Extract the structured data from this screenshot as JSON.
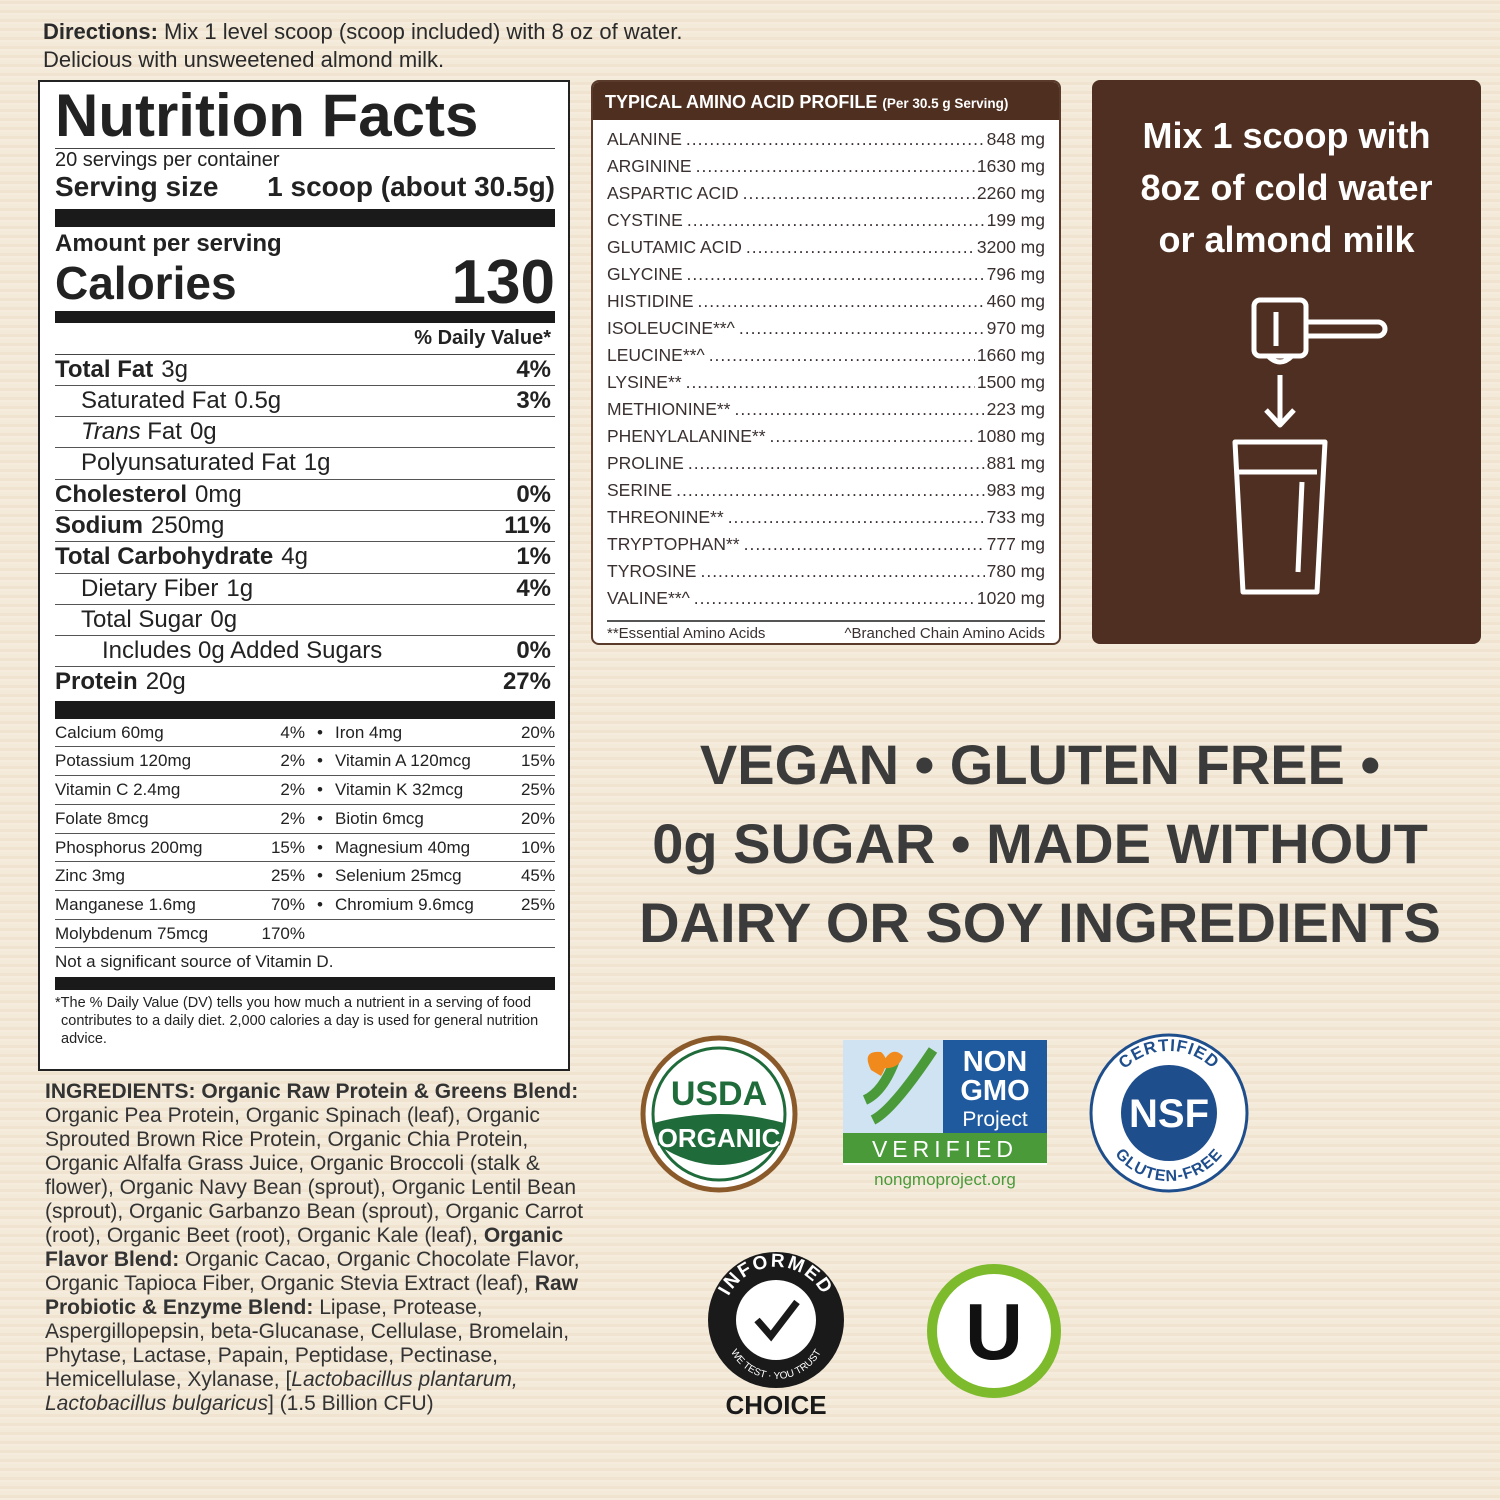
{
  "directions": {
    "label": "Directions:",
    "line1": " Mix 1 level scoop (scoop included) with 8 oz of water.",
    "line2": "Delicious with unsweetened almond milk."
  },
  "nutrition": {
    "title": "Nutrition Facts",
    "servings": "20 servings per container",
    "serving_size_label": "Serving size",
    "serving_size_value": "1 scoop (about 30.5g)",
    "amount_per_serving": "Amount per serving",
    "calories_label": "Calories",
    "calories_value": "130",
    "dv_header": "% Daily Value*",
    "rows": [
      {
        "label": "Total Fat",
        "amount": "3g",
        "dv": "4%",
        "bold": true,
        "indent": 0
      },
      {
        "label": "Saturated Fat",
        "amount": "0.5g",
        "dv": "3%",
        "bold": false,
        "indent": 1
      },
      {
        "italic_prefix": "Trans",
        "label": "Fat",
        "amount": "0g",
        "dv": "",
        "bold": false,
        "indent": 1
      },
      {
        "label": "Polyunsaturated Fat",
        "amount": "1g",
        "dv": "",
        "bold": false,
        "indent": 1
      },
      {
        "label": "Cholesterol",
        "amount": "0mg",
        "dv": "0%",
        "bold": true,
        "indent": 0
      },
      {
        "label": "Sodium",
        "amount": "250mg",
        "dv": "11%",
        "bold": true,
        "indent": 0
      },
      {
        "label": "Total Carbohydrate",
        "amount": "4g",
        "dv": "1%",
        "bold": true,
        "indent": 0
      },
      {
        "label": "Dietary Fiber",
        "amount": "1g",
        "dv": "4%",
        "bold": false,
        "indent": 1
      },
      {
        "label": "Total Sugar",
        "amount": "0g",
        "dv": "",
        "bold": false,
        "indent": 1
      },
      {
        "label": "Includes 0g Added Sugars",
        "amount": "",
        "dv": "0%",
        "bold": false,
        "indent": 2
      },
      {
        "label": "Protein",
        "amount": "20g",
        "dv": "27%",
        "bold": true,
        "indent": 0
      }
    ],
    "micronutrients": [
      {
        "left": "Calcium 60mg",
        "left_dv": "4%",
        "right": "Iron 4mg",
        "right_dv": "20%"
      },
      {
        "left": "Potassium 120mg",
        "left_dv": "2%",
        "right": "Vitamin A 120mcg",
        "right_dv": "15%"
      },
      {
        "left": "Vitamin C 2.4mg",
        "left_dv": "2%",
        "right": "Vitamin K 32mcg",
        "right_dv": "25%"
      },
      {
        "left": "Folate 8mcg",
        "left_dv": "2%",
        "right": "Biotin 6mcg",
        "right_dv": "20%"
      },
      {
        "left": "Phosphorus 200mg",
        "left_dv": "15%",
        "right": "Magnesium 40mg",
        "right_dv": "10%"
      },
      {
        "left": "Zinc 3mg",
        "left_dv": "25%",
        "right": "Selenium 25mcg",
        "right_dv": "45%"
      },
      {
        "left": "Manganese 1.6mg",
        "left_dv": "70%",
        "right": "Chromium 9.6mcg",
        "right_dv": "25%"
      },
      {
        "left": "Molybdenum 75mcg",
        "left_dv": "170%",
        "right": "",
        "right_dv": ""
      }
    ],
    "not_significant": "Not a significant source of Vitamin D.",
    "footnote": "*The % Daily Value (DV) tells you how much a nutrient in a serving of food contributes to a daily diet. 2,000 calories a day is used for general nutrition advice."
  },
  "amino": {
    "title": "TYPICAL AMINO ACID PROFILE",
    "subtitle": "(Per 30.5 g Serving)",
    "items": [
      {
        "name": "ALANINE",
        "value": "848 mg"
      },
      {
        "name": "ARGININE",
        "value": "1630 mg"
      },
      {
        "name": "ASPARTIC ACID",
        "value": "2260 mg"
      },
      {
        "name": "CYSTINE",
        "value": "199 mg"
      },
      {
        "name": "GLUTAMIC ACID",
        "value": "3200 mg"
      },
      {
        "name": "GLYCINE",
        "value": "796 mg"
      },
      {
        "name": "HISTIDINE",
        "value": "460 mg"
      },
      {
        "name": "ISOLEUCINE**^",
        "value": "970 mg"
      },
      {
        "name": "LEUCINE**^",
        "value": "1660 mg"
      },
      {
        "name": "LYSINE**",
        "value": "1500 mg"
      },
      {
        "name": "METHIONINE**",
        "value": "223 mg"
      },
      {
        "name": "PHENYLALANINE**",
        "value": "1080 mg"
      },
      {
        "name": "PROLINE",
        "value": "881 mg"
      },
      {
        "name": "SERINE",
        "value": "983 mg"
      },
      {
        "name": "THREONINE**",
        "value": "733 mg"
      },
      {
        "name": "TRYPTOPHAN**",
        "value": "777 mg"
      },
      {
        "name": "TYROSINE",
        "value": "780 mg"
      },
      {
        "name": "VALINE**^",
        "value": "1020 mg"
      }
    ],
    "footnote_essential": "**Essential Amino Acids",
    "footnote_bcaa": "^Branched Chain Amino Acids"
  },
  "mix": {
    "lines": [
      "Mix 1 scoop with",
      "8oz of cold water",
      "or almond milk"
    ],
    "icons": [
      "scoop-icon",
      "arrow-down-icon",
      "glass-icon"
    ],
    "bg_color": "#4f2f21"
  },
  "slogan": {
    "lines": [
      "VEGAN • GLUTEN FREE •",
      "0g SUGAR • MADE WITHOUT",
      "DAIRY OR SOY INGREDIENTS"
    ]
  },
  "ingredients": [
    {
      "t": "INGREDIENTS: Organic Raw Protein & Greens Blend:",
      "b": true
    },
    {
      "t": " Organic Pea Protein, Organic Spinach (leaf), Organic Sprouted Brown Rice Protein, Organic Chia Protein, Organic Alfalfa Grass Juice, Organic Broccoli (stalk & flower), Organic Navy Bean (sprout), Organic Lentil Bean (sprout), Organic Garbanzo Bean (sprout), Organic Carrot (root), Organic Beet (root), Organic Kale (leaf), "
    },
    {
      "t": "Organic Flavor Blend:",
      "b": true
    },
    {
      "t": " Organic Cacao, Organic Chocolate Flavor, Organic Tapioca Fiber, Organic Stevia Extract (leaf), "
    },
    {
      "t": "Raw Probiotic & Enzyme Blend:",
      "b": true
    },
    {
      "t": " Lipase, Protease, Aspergillopepsin, beta-Glucanase, Cellulase, Bromelain, Phytase, Lactase, Papain, Peptidase, Pectinase, Hemicellulase, Xylanase, ["
    },
    {
      "t": "Lactobacillus plantarum, Lactobacillus bulgaricus",
      "i": true
    },
    {
      "t": "] (1.5 Billion CFU)"
    }
  ],
  "badges": {
    "usda": {
      "top": "USDA",
      "bottom": "ORGANIC",
      "color": "#1f6b3a",
      "ring": "#8a5a2b"
    },
    "nongmo": {
      "line1": "NON",
      "line2": "GMO",
      "line3": "Project",
      "verified": "VERIFIED",
      "url": "nongmoproject.org",
      "color": "#1f5a9e",
      "green": "#4a9a3a"
    },
    "nsf": {
      "center": "NSF",
      "top": "CERTIFIED",
      "bottom": "GLUTEN-FREE",
      "color": "#1f4e8c"
    },
    "informed": {
      "arc_top": "INFORMED",
      "arc_bottom": "WE TEST · YOU TRUST",
      "label": "CHOICE"
    },
    "kosher": {
      "letter": "U",
      "ring": "#7dbb2d"
    }
  }
}
